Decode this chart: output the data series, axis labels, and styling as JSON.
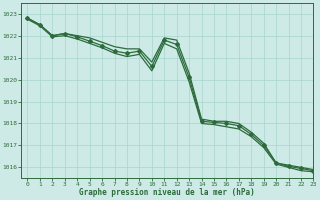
{
  "xlabel": "Graphe pression niveau de la mer (hPa)",
  "ylim": [
    1015.5,
    1023.5
  ],
  "xlim": [
    -0.5,
    23
  ],
  "yticks": [
    1016,
    1017,
    1018,
    1019,
    1020,
    1021,
    1022,
    1023
  ],
  "xticks": [
    0,
    1,
    2,
    3,
    4,
    5,
    6,
    7,
    8,
    9,
    10,
    11,
    12,
    13,
    14,
    15,
    16,
    17,
    18,
    19,
    20,
    21,
    22,
    23
  ],
  "background_color": "#ceeae6",
  "grid_color": "#a8d5cf",
  "line_color": "#2d6b3c",
  "tick_color": "#2d6b3c",
  "series1": [
    1022.8,
    1022.5,
    1022.0,
    1022.1,
    1022.0,
    1021.9,
    1021.7,
    1021.5,
    1021.4,
    1021.4,
    1020.8,
    1021.9,
    1021.8,
    1020.3,
    1018.2,
    1018.1,
    1018.1,
    1018.0,
    1017.6,
    1017.1,
    1016.2,
    1016.1,
    1016.0,
    1015.9
  ],
  "series2": [
    1022.8,
    1022.5,
    1022.0,
    1022.1,
    1021.95,
    1021.75,
    1021.55,
    1021.3,
    1021.2,
    1021.3,
    1020.6,
    1021.8,
    1021.6,
    1020.1,
    1018.1,
    1018.05,
    1018.0,
    1017.9,
    1017.5,
    1017.0,
    1016.2,
    1016.05,
    1015.95,
    1015.85
  ],
  "series3": [
    1022.75,
    1022.45,
    1021.95,
    1022.0,
    1021.85,
    1021.65,
    1021.45,
    1021.2,
    1021.05,
    1021.15,
    1020.4,
    1021.65,
    1021.4,
    1019.9,
    1018.0,
    1017.95,
    1017.85,
    1017.75,
    1017.4,
    1016.9,
    1016.15,
    1016.0,
    1015.85,
    1015.8
  ]
}
